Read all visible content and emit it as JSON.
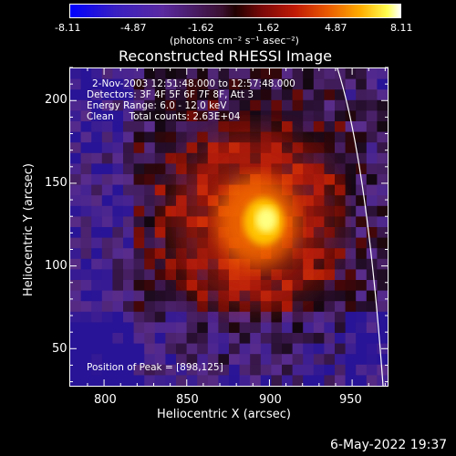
{
  "colorbar": {
    "ticks": [
      "-8.11",
      "-4.87",
      "-1.62",
      "1.62",
      "4.87",
      "8.11"
    ],
    "units": "(photons cm⁻² s⁻¹ asec⁻²)"
  },
  "title": "Reconstructed RHESSI Image",
  "info": {
    "line1": "2-Nov-2003 12:51:48.000 to 12:57:48.000",
    "line2": "Detectors: 3F 4F 5F 6F 7F 8F, Att 3",
    "line3": "Energy Range: 6.0 - 12.0 keV",
    "line4": "Clean     Total counts: 2.63E+04",
    "peak": "Position of Peak = [898,125]"
  },
  "axes": {
    "xlabel": "Heliocentric X (arcsec)",
    "ylabel": "Heliocentric Y (arcsec)",
    "xticks": [
      "800",
      "850",
      "900",
      "950"
    ],
    "yticks": [
      "50",
      "100",
      "150",
      "200"
    ],
    "xrange": [
      779,
      972
    ],
    "yrange": [
      27,
      220
    ]
  },
  "timestamp": "6-May-2022 19:37"
}
